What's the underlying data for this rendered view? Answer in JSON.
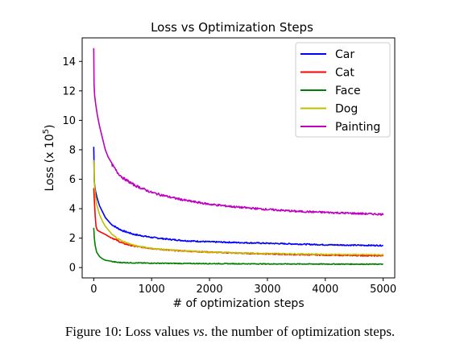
{
  "caption": {
    "label": "Figure 10:",
    "text_before": "Loss values",
    "emphasis": "vs",
    "text_after": ". the number of optimization steps."
  },
  "chart_data": {
    "type": "line",
    "title": "Loss vs Optimization Steps",
    "xlabel": "# of optimization steps",
    "ylabel": "Loss (x 10^5)",
    "ylabel_base": "Loss (x 10",
    "ylabel_exp": "5",
    "ylabel_close": ")",
    "xlim": [
      -200,
      5200
    ],
    "ylim": [
      -0.7,
      15.6
    ],
    "xticks": [
      0,
      1000,
      2000,
      3000,
      4000,
      5000
    ],
    "yticks": [
      0,
      2,
      4,
      6,
      8,
      10,
      12,
      14
    ],
    "grid": false,
    "legend_position": "top-right",
    "series": [
      {
        "name": "Car",
        "color": "#0000ff",
        "points": [
          [
            0,
            8.2
          ],
          [
            10,
            5.8
          ],
          [
            30,
            5.2
          ],
          [
            60,
            4.7
          ],
          [
            100,
            4.2
          ],
          [
            150,
            3.8
          ],
          [
            200,
            3.4
          ],
          [
            300,
            2.95
          ],
          [
            400,
            2.7
          ],
          [
            500,
            2.5
          ],
          [
            700,
            2.25
          ],
          [
            1000,
            2.05
          ],
          [
            1300,
            1.92
          ],
          [
            1600,
            1.82
          ],
          [
            2000,
            1.75
          ],
          [
            2500,
            1.7
          ],
          [
            3000,
            1.65
          ],
          [
            3500,
            1.6
          ],
          [
            4000,
            1.55
          ],
          [
            4500,
            1.52
          ],
          [
            5000,
            1.5
          ]
        ]
      },
      {
        "name": "Cat",
        "color": "#ff0000",
        "points": [
          [
            0,
            5.4
          ],
          [
            10,
            4.6
          ],
          [
            25,
            3.5
          ],
          [
            40,
            2.8
          ],
          [
            60,
            2.55
          ],
          [
            100,
            2.45
          ],
          [
            150,
            2.35
          ],
          [
            200,
            2.25
          ],
          [
            300,
            2.05
          ],
          [
            400,
            1.85
          ],
          [
            500,
            1.65
          ],
          [
            700,
            1.45
          ],
          [
            1000,
            1.3
          ],
          [
            1300,
            1.18
          ],
          [
            1600,
            1.12
          ],
          [
            2000,
            1.05
          ],
          [
            2500,
            0.98
          ],
          [
            3000,
            0.93
          ],
          [
            3500,
            0.88
          ],
          [
            4000,
            0.85
          ],
          [
            4500,
            0.82
          ],
          [
            5000,
            0.8
          ]
        ]
      },
      {
        "name": "Face",
        "color": "#008000",
        "points": [
          [
            0,
            2.7
          ],
          [
            10,
            2.0
          ],
          [
            25,
            1.5
          ],
          [
            50,
            1.05
          ],
          [
            100,
            0.75
          ],
          [
            150,
            0.6
          ],
          [
            200,
            0.5
          ],
          [
            300,
            0.42
          ],
          [
            400,
            0.36
          ],
          [
            500,
            0.34
          ],
          [
            700,
            0.32
          ],
          [
            1000,
            0.3
          ],
          [
            1500,
            0.28
          ],
          [
            2000,
            0.27
          ],
          [
            3000,
            0.25
          ],
          [
            4000,
            0.24
          ],
          [
            5000,
            0.23
          ]
        ]
      },
      {
        "name": "Dog",
        "color": "#bfbf00",
        "points": [
          [
            0,
            7.3
          ],
          [
            10,
            5.8
          ],
          [
            25,
            5.0
          ],
          [
            50,
            4.3
          ],
          [
            100,
            3.6
          ],
          [
            150,
            3.15
          ],
          [
            200,
            2.8
          ],
          [
            300,
            2.3
          ],
          [
            400,
            2.0
          ],
          [
            500,
            1.78
          ],
          [
            700,
            1.5
          ],
          [
            1000,
            1.3
          ],
          [
            1300,
            1.2
          ],
          [
            1600,
            1.12
          ],
          [
            2000,
            1.05
          ],
          [
            2500,
            1.0
          ],
          [
            3000,
            0.96
          ],
          [
            3500,
            0.93
          ],
          [
            4000,
            0.9
          ],
          [
            4500,
            0.88
          ],
          [
            5000,
            0.87
          ]
        ]
      },
      {
        "name": "Painting",
        "color": "#bf00bf",
        "points": [
          [
            0,
            14.9
          ],
          [
            5,
            12.5
          ],
          [
            15,
            11.7
          ],
          [
            30,
            11.2
          ],
          [
            60,
            10.4
          ],
          [
            100,
            9.6
          ],
          [
            150,
            8.8
          ],
          [
            200,
            8.0
          ],
          [
            250,
            7.5
          ],
          [
            300,
            7.1
          ],
          [
            400,
            6.5
          ],
          [
            500,
            6.1
          ],
          [
            700,
            5.6
          ],
          [
            1000,
            5.1
          ],
          [
            1300,
            4.8
          ],
          [
            1600,
            4.55
          ],
          [
            2000,
            4.3
          ],
          [
            2500,
            4.1
          ],
          [
            3000,
            3.95
          ],
          [
            3500,
            3.82
          ],
          [
            4000,
            3.75
          ],
          [
            4500,
            3.68
          ],
          [
            5000,
            3.62
          ]
        ]
      }
    ]
  }
}
